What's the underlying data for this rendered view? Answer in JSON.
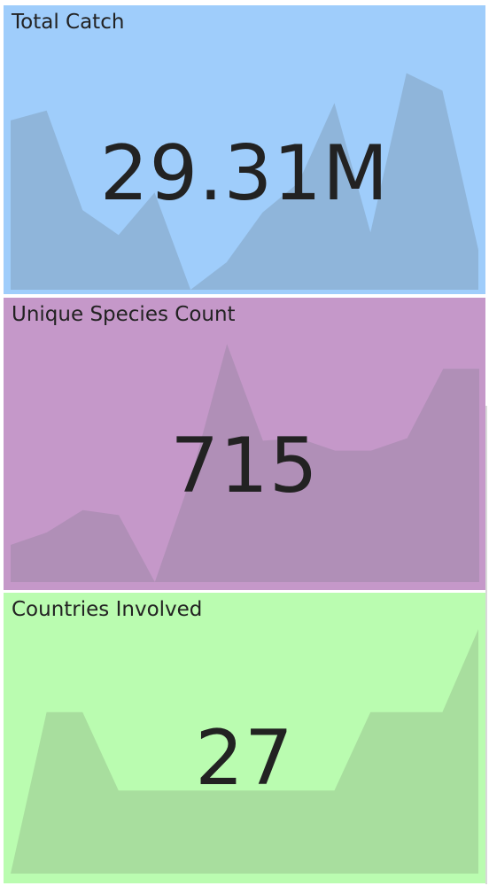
{
  "chart_data": [
    {
      "type": "area",
      "title": "Total Catch",
      "value_label": "29.31M",
      "background": "#9fcdfb",
      "fill": "#8fb5da",
      "x": [
        0,
        1,
        2,
        3,
        4,
        5,
        6,
        7,
        8,
        9,
        10,
        11,
        12,
        13
      ],
      "values": [
        68,
        72,
        32,
        22,
        39,
        0,
        11,
        31,
        43,
        75,
        23,
        87,
        80,
        16
      ],
      "ylim": [
        0,
        100
      ]
    },
    {
      "type": "area",
      "title": "Unique Species Count",
      "value_label": "715",
      "background": "#c598c9",
      "fill": "#b08fb7",
      "x": [
        0,
        1,
        2,
        3,
        4,
        5,
        6,
        7,
        8,
        9,
        10,
        11,
        12,
        13
      ],
      "values": [
        15,
        20,
        29,
        27,
        0,
        42,
        96,
        57,
        58,
        53,
        53,
        58,
        86,
        86
      ],
      "ylim": [
        0,
        100
      ]
    },
    {
      "type": "area",
      "title": "Countries Involved",
      "value_label": "27",
      "background": "#bafcb0",
      "fill": "#a8de9e",
      "x": [
        0,
        1,
        2,
        3,
        4,
        5,
        6,
        7,
        8,
        9,
        10,
        11,
        12,
        13
      ],
      "values": [
        0,
        66,
        66,
        34,
        34,
        34,
        34,
        34,
        34,
        34,
        66,
        66,
        66,
        100
      ],
      "ylim": [
        0,
        100
      ]
    }
  ]
}
